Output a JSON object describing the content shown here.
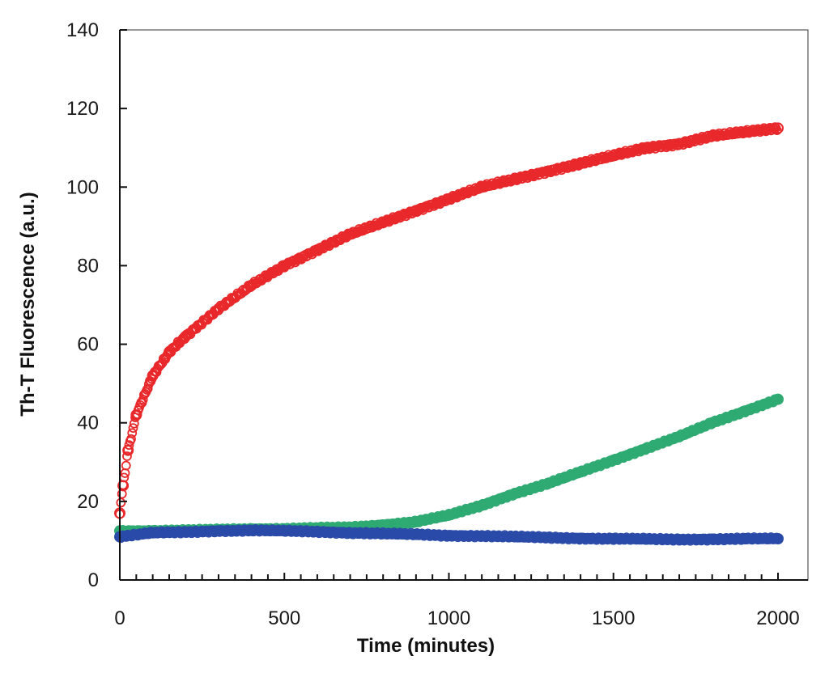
{
  "chart_data": {
    "type": "scatter",
    "xlabel": "Time (minutes)",
    "ylabel": "Th-T Fluorescence (a.u.)",
    "xlim": [
      0,
      2000
    ],
    "ylim": [
      0,
      140
    ],
    "x_ticks": [
      "0",
      "500",
      "1000",
      "1500",
      "2000"
    ],
    "y_ticks": [
      "0",
      "20",
      "40",
      "60",
      "80",
      "100",
      "120",
      "140"
    ],
    "x_minor_step": 50,
    "grid": false,
    "legend": "none",
    "series": [
      {
        "color": "#e8282b",
        "marker": "open-circle",
        "x": [
          0,
          10,
          25,
          50,
          100,
          150,
          200,
          300,
          400,
          500,
          600,
          700,
          800,
          900,
          1000,
          1100,
          1200,
          1300,
          1400,
          1500,
          1600,
          1700,
          1800,
          1900,
          2000
        ],
        "y": [
          17,
          24,
          33,
          42,
          52,
          58,
          62,
          69,
          75,
          80,
          84,
          88,
          91,
          94,
          97,
          100,
          102,
          104,
          106,
          108,
          110,
          111,
          113,
          114,
          115
        ]
      },
      {
        "color": "#2eaa72",
        "marker": "filled-circle",
        "x": [
          0,
          100,
          200,
          300,
          400,
          500,
          600,
          700,
          800,
          900,
          1000,
          1100,
          1200,
          1300,
          1400,
          1500,
          1600,
          1700,
          1800,
          1900,
          2000
        ],
        "y": [
          12.5,
          12.5,
          12.6,
          12.8,
          13,
          13,
          13.2,
          13.4,
          14,
          14.8,
          16.5,
          19,
          22,
          24.5,
          27.5,
          30.5,
          33.5,
          36.5,
          40,
          43,
          46
        ]
      },
      {
        "color": "#2a4aa8",
        "marker": "filled-circle",
        "x": [
          0,
          100,
          200,
          300,
          400,
          500,
          600,
          700,
          800,
          900,
          1000,
          1100,
          1200,
          1300,
          1400,
          1500,
          1600,
          1700,
          1800,
          1900,
          2000
        ],
        "y": [
          11,
          12,
          12.2,
          12.5,
          12.6,
          12.5,
          12.3,
          12,
          11.8,
          11.6,
          11.3,
          11.2,
          11,
          10.8,
          10.6,
          10.5,
          10.4,
          10.3,
          10.4,
          10.5,
          10.5
        ]
      }
    ]
  }
}
